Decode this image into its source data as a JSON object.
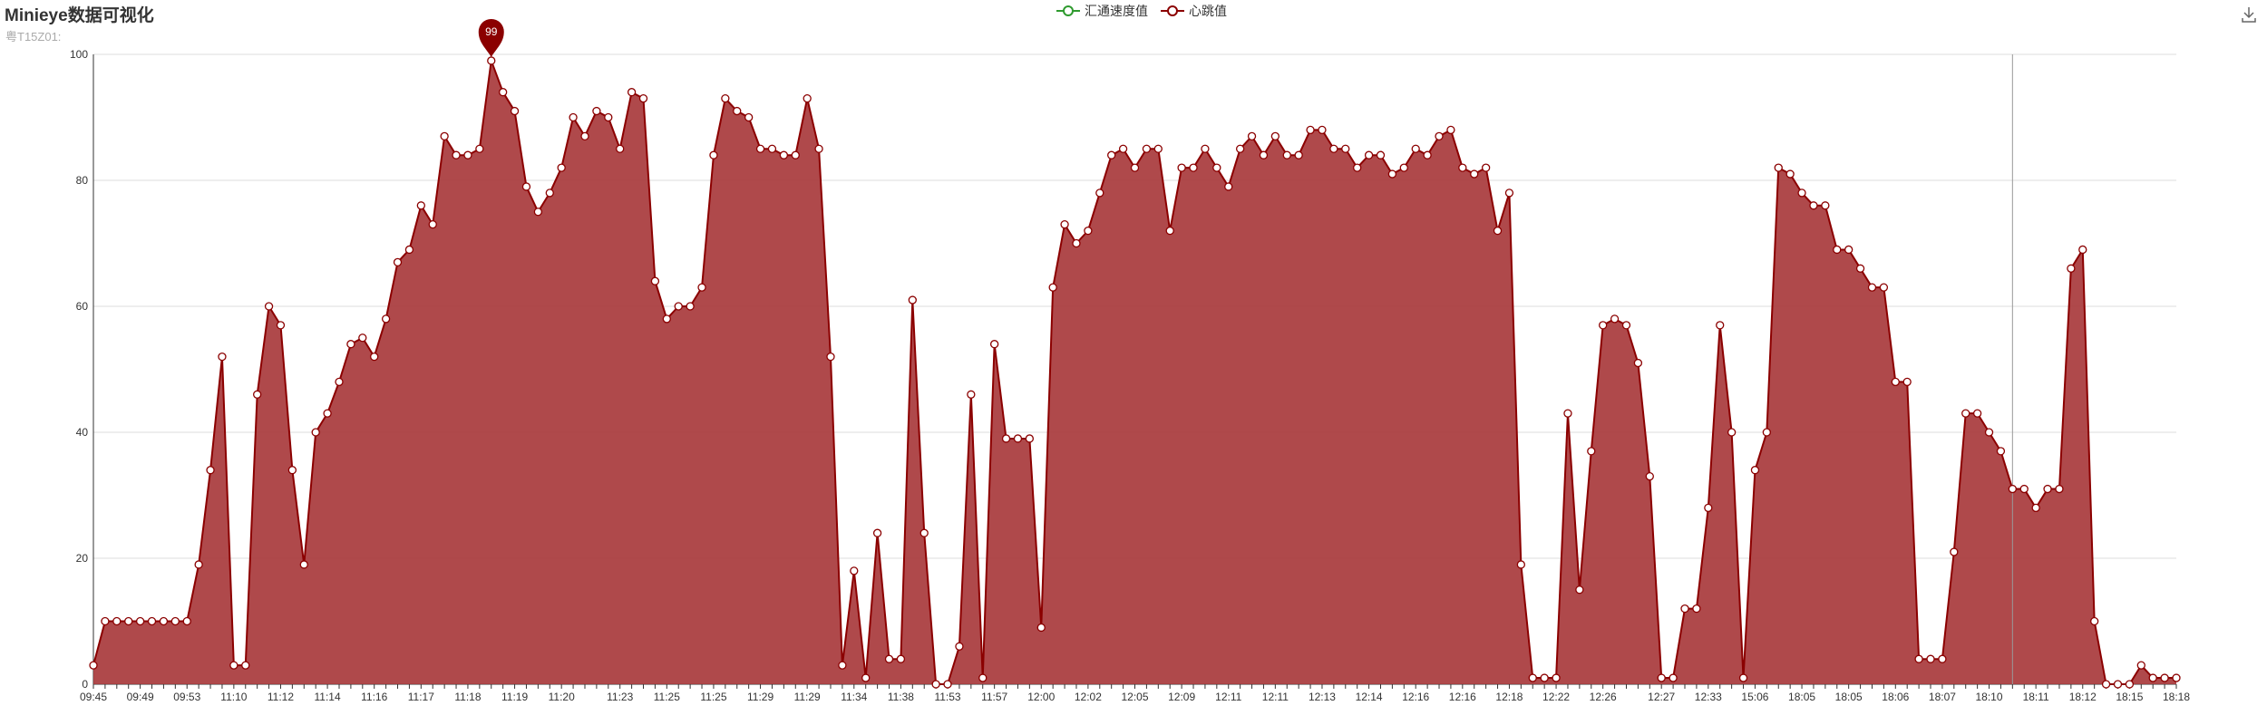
{
  "title": "Minieye数据可视化",
  "subtitle": "粤T15Z01:",
  "legend": [
    {
      "name": "汇通速度值",
      "color": "#2e9a2e"
    },
    {
      "name": "心跳值",
      "color": "#8b0000"
    }
  ],
  "toolbox": {
    "icon": "download-icon"
  },
  "colors": {
    "line": "#8b0000",
    "area": "#a83a3c",
    "grid": "#dddddd",
    "axis": "#333333",
    "cursor": "#999999"
  },
  "chart_data": {
    "type": "area",
    "series": [
      {
        "name": "汇通速度值",
        "values": []
      },
      {
        "name": "心跳值",
        "values": [
          3,
          10,
          10,
          10,
          10,
          10,
          10,
          10,
          10,
          19,
          34,
          52,
          3,
          3,
          46,
          60,
          57,
          34,
          19,
          40,
          43,
          48,
          54,
          55,
          52,
          58,
          67,
          69,
          76,
          73,
          87,
          84,
          84,
          85,
          99,
          94,
          91,
          79,
          75,
          78,
          82,
          90,
          87,
          91,
          90,
          85,
          94,
          93,
          64,
          58,
          60,
          60,
          63,
          84,
          93,
          91,
          90,
          85,
          85,
          84,
          84,
          93,
          85,
          52,
          3,
          18,
          1,
          24,
          4,
          4,
          61,
          24,
          0,
          0,
          6,
          46,
          1,
          54,
          39,
          39,
          39,
          9,
          63,
          73,
          70,
          72,
          78,
          84,
          85,
          82,
          85,
          85,
          72,
          82,
          82,
          85,
          82,
          79,
          85,
          87,
          84,
          87,
          84,
          84,
          88,
          88,
          85,
          85,
          82,
          84,
          84,
          81,
          82,
          85,
          84,
          87,
          88,
          82,
          81,
          82,
          72,
          78,
          19,
          1,
          1,
          1,
          43,
          15,
          37,
          57,
          58,
          57,
          51,
          33,
          1,
          1,
          12,
          12,
          28,
          57,
          40,
          1,
          34,
          40,
          82,
          81,
          78,
          76,
          76,
          69,
          69,
          66,
          63,
          63,
          48,
          48,
          4,
          4,
          4,
          21,
          43,
          43,
          40,
          37,
          31,
          31,
          28,
          31,
          31,
          66,
          69,
          10,
          0,
          0,
          0,
          3,
          1,
          1,
          1
        ]
      }
    ],
    "x_tick_labels": [
      "09:45",
      "09:49",
      "09:53",
      "11:10",
      "11:12",
      "11:14",
      "11:16",
      "11:17",
      "11:18",
      "11:19",
      "11:20",
      "11:23",
      "11:25",
      "11:25",
      "11:29",
      "11:29",
      "11:34",
      "11:38",
      "11:53",
      "11:57",
      "12:00",
      "12:02",
      "12:05",
      "12:09",
      "12:11",
      "12:11",
      "12:13",
      "12:14",
      "12:16",
      "12:16",
      "12:18",
      "12:22",
      "12:26",
      "12:27",
      "12:33",
      "15:06",
      "18:05",
      "18:05",
      "18:06",
      "18:07",
      "18:10",
      "18:11",
      "18:12",
      "18:15",
      "18:18"
    ],
    "ylim": [
      0,
      100
    ],
    "y_ticks": [
      0,
      20,
      40,
      60,
      80,
      100
    ],
    "grid": true,
    "mark_point": {
      "label": "99",
      "type": "max"
    },
    "cursor_label": "18:12",
    "legend_position": "top-center"
  }
}
